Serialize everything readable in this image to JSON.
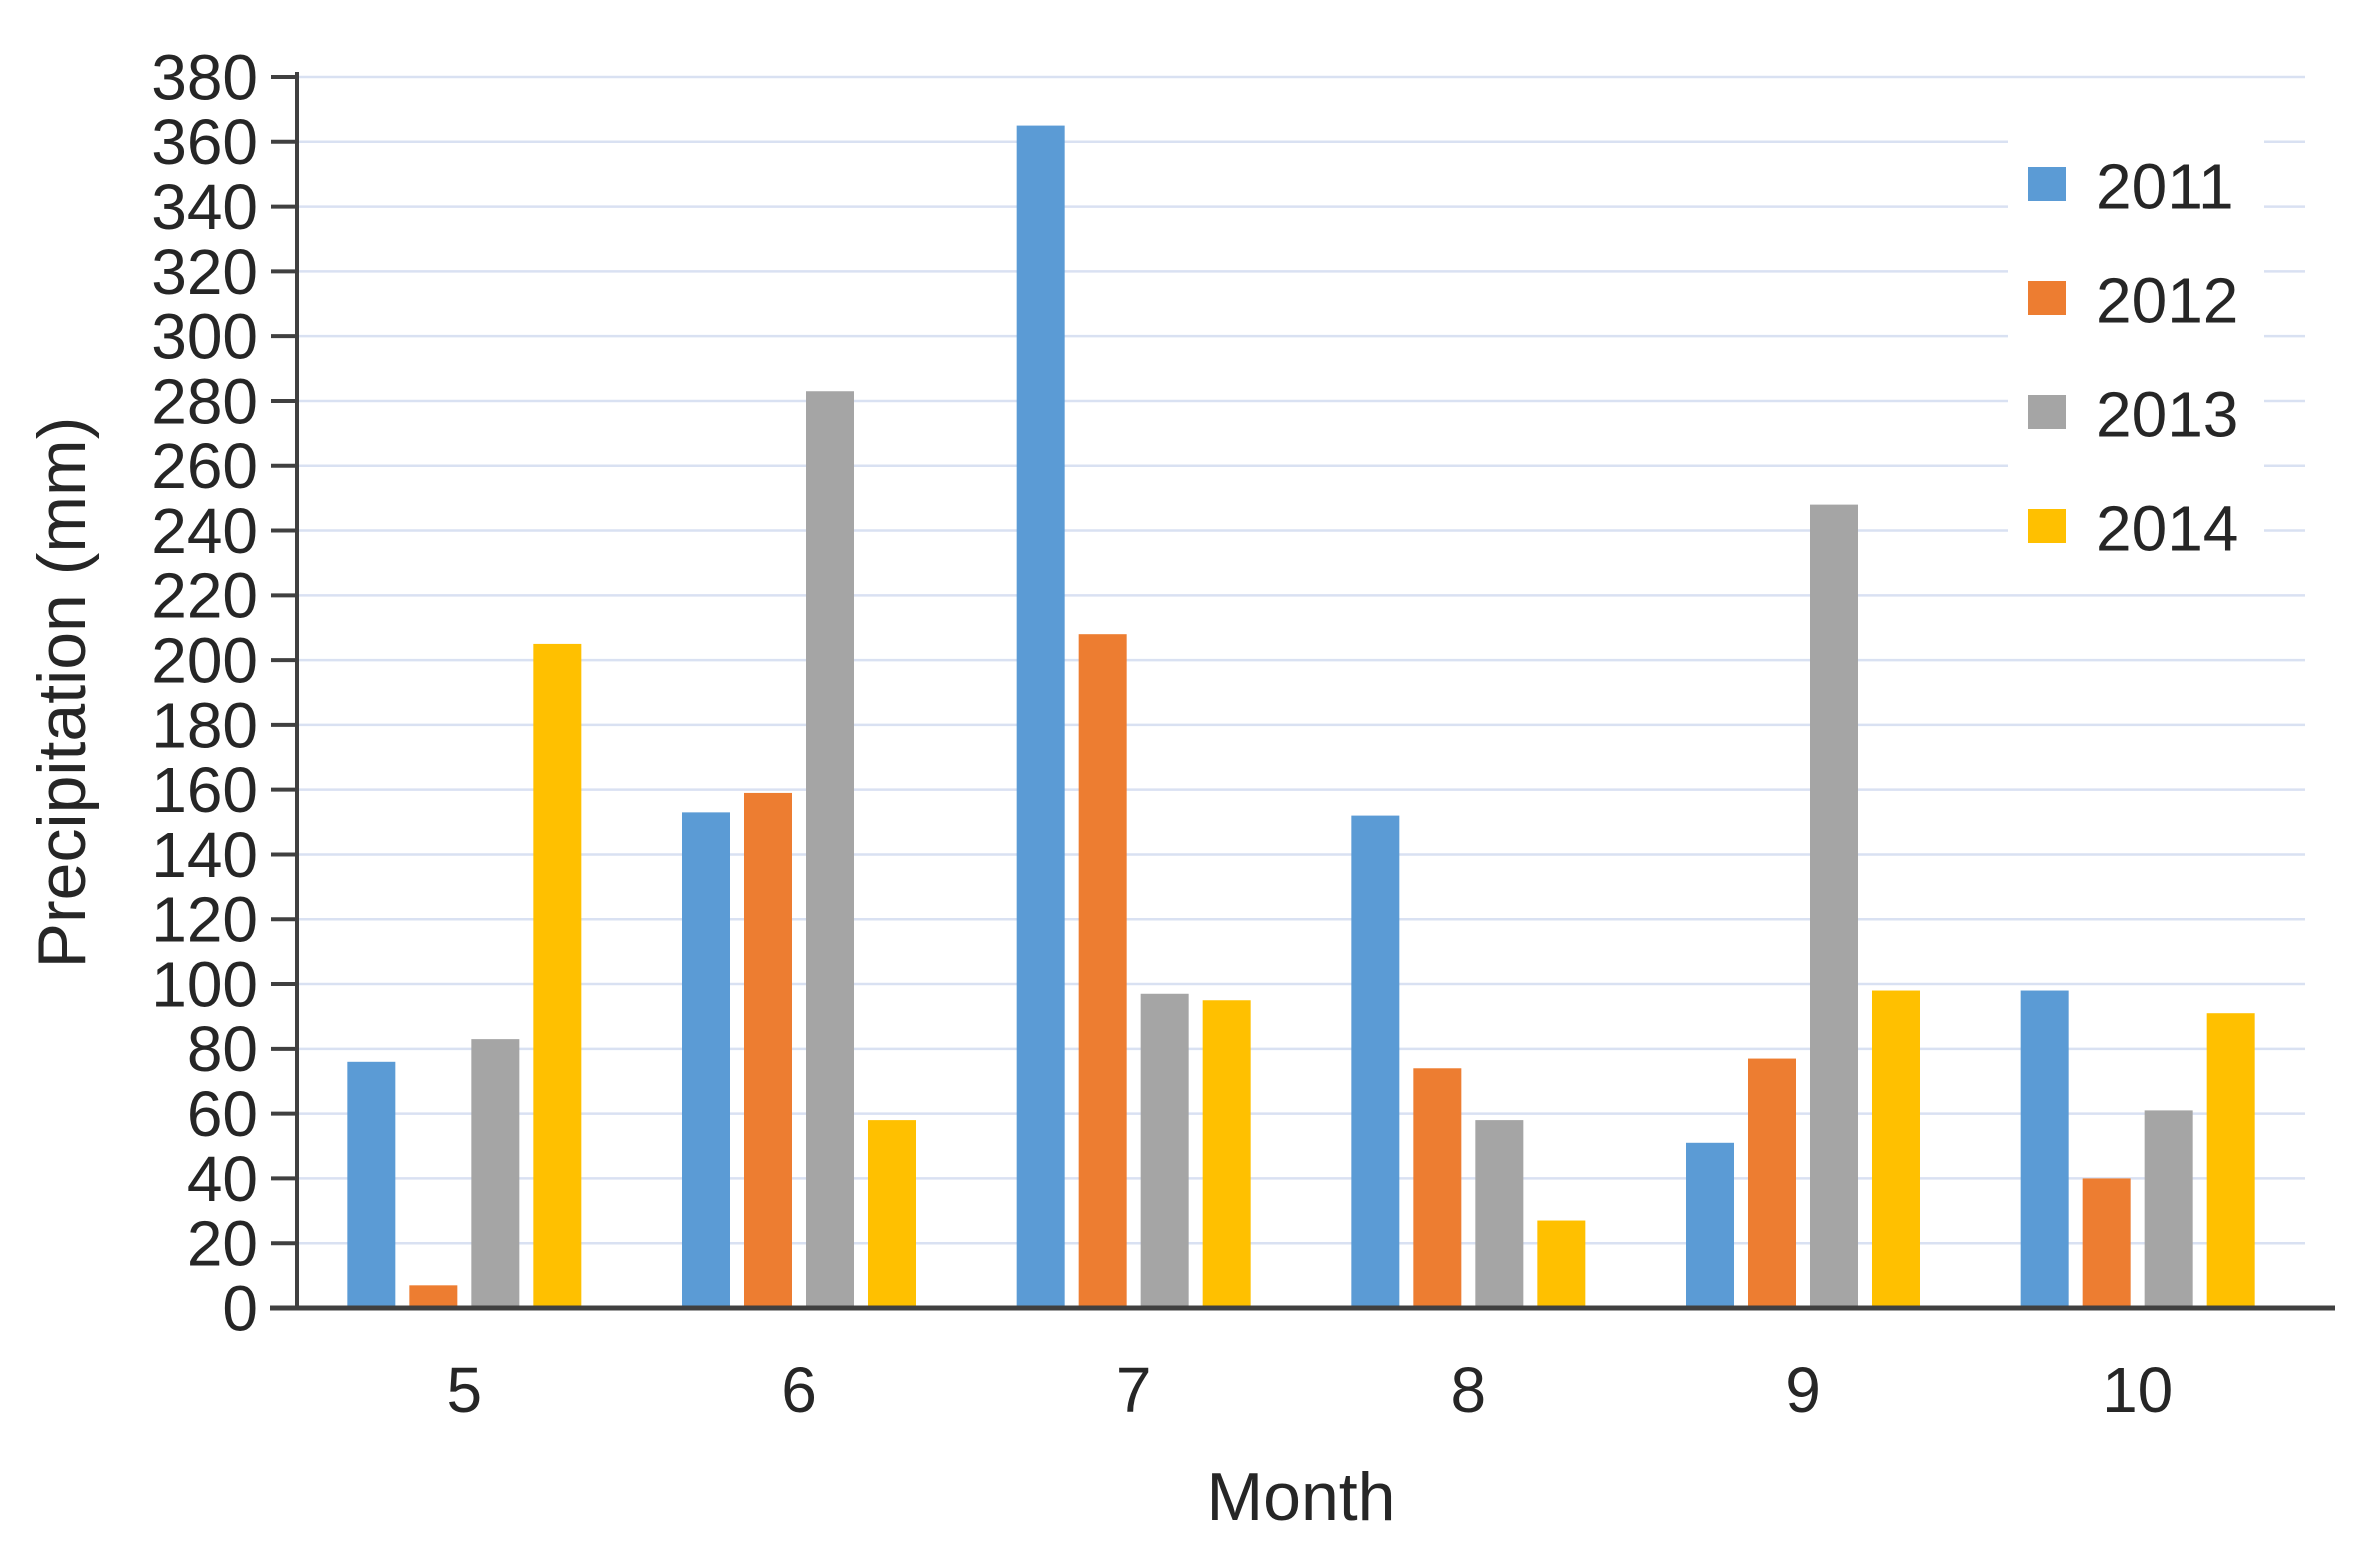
{
  "chart_data": {
    "type": "bar",
    "title": "",
    "xlabel": "Month",
    "ylabel": "Precipitation (mm)",
    "categories": [
      "5",
      "6",
      "7",
      "8",
      "9",
      "10"
    ],
    "series": [
      {
        "name": "2011",
        "color": "#5B9BD5",
        "values": [
          76,
          153,
          365,
          152,
          51,
          98
        ]
      },
      {
        "name": "2012",
        "color": "#ED7D31",
        "values": [
          7,
          159,
          208,
          74,
          77,
          40
        ]
      },
      {
        "name": "2013",
        "color": "#A5A5A5",
        "values": [
          83,
          283,
          97,
          58,
          248,
          61
        ]
      },
      {
        "name": "2014",
        "color": "#FFC000",
        "values": [
          205,
          58,
          95,
          27,
          98,
          91
        ]
      }
    ],
    "ylim": [
      0,
      380
    ],
    "ytick_step": 20,
    "grid": true,
    "legend_position": "top-right"
  },
  "styles": {
    "background_color": "#FFFFFF",
    "gridline_color": "#D9E1F2",
    "axis_color": "#404040",
    "text_color": "#262626"
  }
}
